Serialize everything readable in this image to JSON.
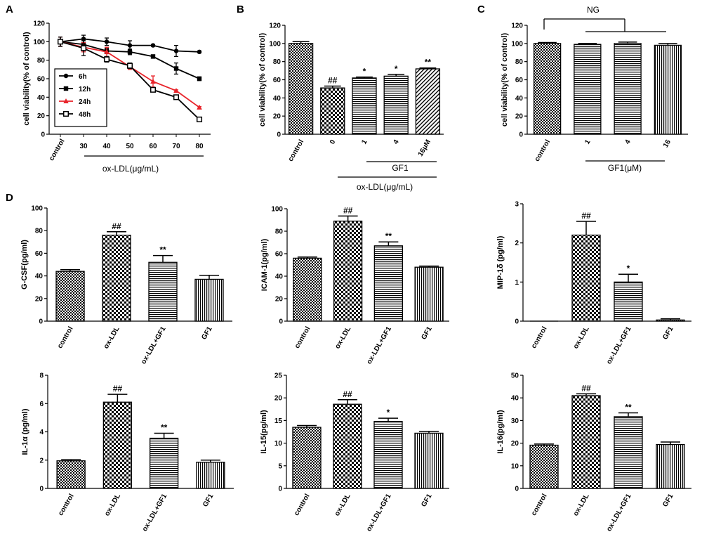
{
  "figure": {
    "panel_letters": [
      "A",
      "B",
      "C",
      "D"
    ]
  },
  "colors": {
    "line_black": "#000000",
    "line_red": "#e8232a"
  },
  "chart_data": [
    {
      "id": "A",
      "type": "line",
      "xlabel": "ox-LDL(μg/mL)",
      "ylabel": "cell viability(% of control)",
      "categories": [
        "control",
        "30",
        "40",
        "50",
        "60",
        "70",
        "80"
      ],
      "ylim": [
        0,
        120
      ],
      "yticks": [
        0,
        20,
        40,
        60,
        80,
        100,
        120
      ],
      "series": [
        {
          "name": "6h",
          "marker": "circle",
          "color": "#000000",
          "values": [
            100,
            103,
            100,
            96,
            96,
            90,
            89
          ],
          "errors": [
            5,
            4,
            4,
            5,
            1,
            6,
            1
          ]
        },
        {
          "name": "12h",
          "marker": "square",
          "color": "#000000",
          "values": [
            100,
            97,
            90,
            89,
            84,
            71,
            60
          ],
          "errors": [
            5,
            4,
            3,
            3,
            1,
            6,
            2
          ]
        },
        {
          "name": "24h",
          "marker": "triangle",
          "color": "#e8232a",
          "values": [
            100,
            94,
            89,
            73,
            57,
            47,
            29
          ],
          "errors": [
            5,
            5,
            5,
            3,
            6,
            1,
            1
          ]
        },
        {
          "name": "48h",
          "marker": "open-square",
          "color": "#000000",
          "values": [
            100,
            93,
            81,
            74,
            48,
            40,
            16
          ],
          "errors": [
            5,
            8,
            3,
            3,
            1,
            1,
            1
          ]
        }
      ]
    },
    {
      "id": "B",
      "type": "bar",
      "ylabel": "cell viability(% of control)",
      "categories": [
        "control",
        "0",
        "1",
        "4",
        "16μM"
      ],
      "values": [
        100,
        51,
        62,
        64,
        72
      ],
      "errors": [
        2,
        2,
        1,
        2,
        1
      ],
      "annotations": [
        "",
        "##",
        "*",
        "*",
        "**"
      ],
      "ylim": [
        0,
        120
      ],
      "yticks": [
        0,
        20,
        40,
        60,
        80,
        100,
        120
      ],
      "group_labels": [
        "GF1",
        "ox-LDL(μg/mL)"
      ]
    },
    {
      "id": "C",
      "type": "bar",
      "ylabel": "cell viability(% of control)",
      "categories": [
        "control",
        "1",
        "4",
        "16"
      ],
      "values": [
        100,
        99,
        100,
        98
      ],
      "errors": [
        1,
        1,
        1.5,
        2
      ],
      "annotations": [
        "",
        "",
        "",
        ""
      ],
      "ylim": [
        0,
        120
      ],
      "yticks": [
        0,
        20,
        40,
        60,
        80,
        100,
        120
      ],
      "group_labels": [
        "GF1(μM)"
      ],
      "top_label": "NG"
    },
    {
      "id": "D1",
      "type": "bar",
      "ylabel": "G-CSF(pg/ml)",
      "categories": [
        "control",
        "ox-LDL",
        "ox-LDL+GF1",
        "GF1"
      ],
      "values": [
        44,
        76,
        52,
        37
      ],
      "errors": [
        1.5,
        3,
        6,
        3.5
      ],
      "annotations": [
        "",
        "##",
        "**",
        ""
      ],
      "ylim": [
        0,
        100
      ],
      "yticks": [
        0,
        20,
        40,
        60,
        80,
        100
      ]
    },
    {
      "id": "D2",
      "type": "bar",
      "ylabel": "ICAM-1(pg/ml)",
      "categories": [
        "control",
        "ox-LDL",
        "ox-LDL+GF1",
        "GF1"
      ],
      "values": [
        56,
        89,
        67,
        48
      ],
      "errors": [
        1,
        4.5,
        3.5,
        1
      ],
      "annotations": [
        "",
        "##",
        "**",
        ""
      ],
      "ylim": [
        0,
        100
      ],
      "yticks": [
        0,
        20,
        40,
        60,
        80,
        100
      ]
    },
    {
      "id": "D3",
      "type": "bar",
      "ylabel": "MIP-1δ (pg/ml)",
      "categories": [
        "control",
        "ox-LDL",
        "ox-LDL+GF1",
        "GF1"
      ],
      "values": [
        0,
        2.2,
        1.0,
        0.03
      ],
      "errors": [
        0,
        0.35,
        0.2,
        0.03
      ],
      "annotations": [
        "",
        "##",
        "*",
        ""
      ],
      "ylim": [
        0,
        3
      ],
      "yticks": [
        0,
        1,
        2,
        3
      ]
    },
    {
      "id": "D4",
      "type": "bar",
      "ylabel": "IL-1α (pg/ml)",
      "categories": [
        "control",
        "ox-LDL",
        "ox-LDL+GF1",
        "GF1"
      ],
      "values": [
        1.95,
        6.1,
        3.55,
        1.85
      ],
      "errors": [
        0.08,
        0.55,
        0.35,
        0.15
      ],
      "annotations": [
        "",
        "##",
        "**",
        ""
      ],
      "ylim": [
        0,
        8
      ],
      "yticks": [
        0,
        2,
        4,
        6,
        8
      ]
    },
    {
      "id": "D5",
      "type": "bar",
      "ylabel": "IL-15(pg/ml)",
      "categories": [
        "control",
        "ox-LDL",
        "ox-LDL+GF1",
        "GF1"
      ],
      "values": [
        13.5,
        18.6,
        14.8,
        12.2
      ],
      "errors": [
        0.4,
        1.0,
        0.7,
        0.4
      ],
      "annotations": [
        "",
        "##",
        "*",
        ""
      ],
      "ylim": [
        0,
        25
      ],
      "yticks": [
        0,
        5,
        10,
        15,
        20,
        25
      ]
    },
    {
      "id": "D6",
      "type": "bar",
      "ylabel": "IL-16(pg/ml)",
      "categories": [
        "control",
        "ox-LDL",
        "ox-LDL+GF1",
        "GF1"
      ],
      "values": [
        19.1,
        41,
        31.7,
        19.4
      ],
      "errors": [
        0.5,
        0.8,
        1.7,
        1.1
      ],
      "annotations": [
        "",
        "##",
        "**",
        ""
      ],
      "ylim": [
        0,
        50
      ],
      "yticks": [
        0,
        10,
        20,
        30,
        40,
        50
      ]
    }
  ]
}
